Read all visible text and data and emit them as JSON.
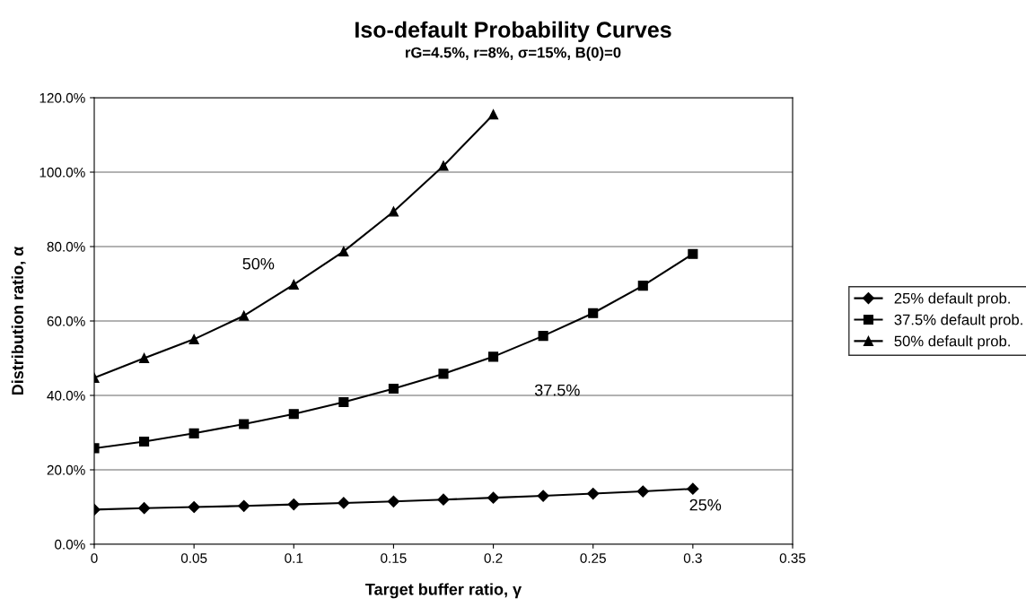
{
  "chart_data": {
    "type": "line",
    "title": "Iso-default Probability Curves",
    "subtitle": "rG=4.5%, r=8%, σ=15%, B(0)=0",
    "xlabel": "Target buffer ratio, γ",
    "ylabel": "Distribution ratio, α",
    "x": [
      0,
      0.025,
      0.05,
      0.075,
      0.1,
      0.125,
      0.15,
      0.175,
      0.2,
      0.225,
      0.25,
      0.275,
      0.3
    ],
    "series": [
      {
        "name": "25% default prob.",
        "color": "#000000",
        "marker": "diamond",
        "values": [
          9.3,
          9.7,
          10.0,
          10.3,
          10.7,
          11.1,
          11.5,
          12.0,
          12.5,
          13.0,
          13.6,
          14.2,
          14.9
        ]
      },
      {
        "name": "37.5% default prob.",
        "color": "#000000",
        "marker": "square",
        "values": [
          25.8,
          27.6,
          29.8,
          32.3,
          35.0,
          38.2,
          41.8,
          45.8,
          50.4,
          56.0,
          62.1,
          69.5,
          78.0
        ]
      },
      {
        "name": "50% default prob.",
        "color": "#000000",
        "marker": "triangle",
        "values": [
          44.7,
          50.0,
          55.1,
          61.4,
          69.8,
          78.7,
          89.4,
          101.7,
          115.5,
          null,
          null,
          null,
          null
        ]
      }
    ],
    "xlim": [
      0,
      0.35
    ],
    "xticks": [
      0,
      0.05,
      0.1,
      0.15,
      0.2,
      0.25,
      0.3,
      0.35
    ],
    "ylim": [
      0,
      120
    ],
    "yticks": [
      {
        "value": 0,
        "label": "0.0%"
      },
      {
        "value": 20,
        "label": "20.0%"
      },
      {
        "value": 40,
        "label": "40.0%"
      },
      {
        "value": 60,
        "label": "60.0%"
      },
      {
        "value": 80,
        "label": "80.0%"
      },
      {
        "value": 100,
        "label": "100.0%"
      },
      {
        "value": 120,
        "label": "120.0%"
      }
    ],
    "grid": "y",
    "legend": "right",
    "line_style": "solid",
    "annotations": [
      "50%",
      "37.5%",
      "25%"
    ]
  }
}
